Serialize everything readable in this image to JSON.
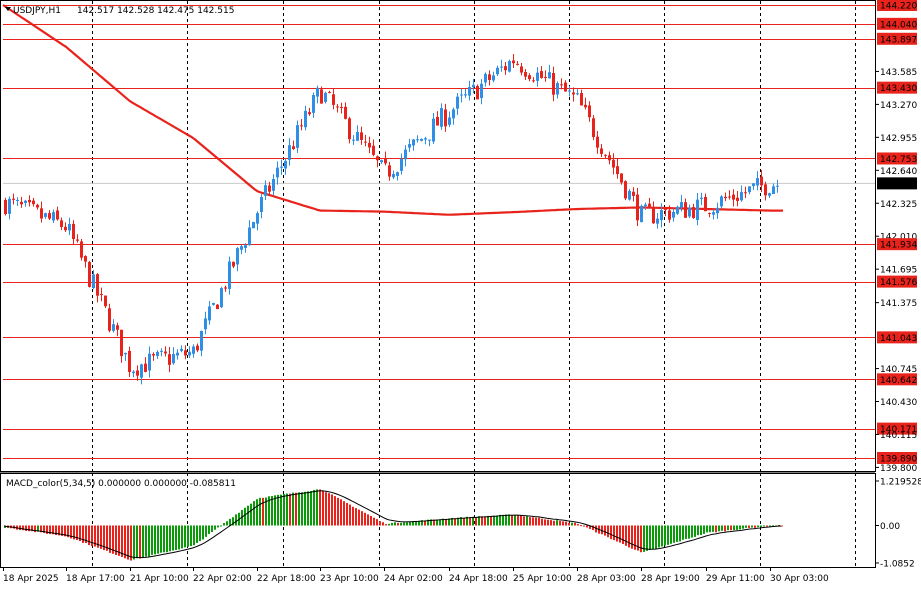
{
  "header": {
    "symbol": "USDJPY,H1",
    "ohlc": "142.517 142.528 142.475 142.515"
  },
  "macd": {
    "label": "MACD_color(5,34,5) 0.000000 0.000000 -0.085811",
    "scale": [
      "1.219528",
      "0.00",
      "-1.0852"
    ]
  },
  "price_scale": [
    "144.220",
    "144.040",
    "143.897",
    "143.585",
    "143.430",
    "143.270",
    "142.955",
    "142.753",
    "142.640",
    "142.515",
    "142.325",
    "142.010",
    "141.934",
    "141.695",
    "141.576",
    "141.375",
    "141.043",
    "140.745",
    "140.642",
    "140.430",
    "140.171",
    "140.115",
    "139.890",
    "139.800"
  ],
  "levels": [
    "144.220",
    "144.040",
    "143.897",
    "143.430",
    "142.753",
    "141.934",
    "141.576",
    "141.043",
    "140.642",
    "140.171",
    "139.890"
  ],
  "bid": "142.515",
  "time_axis": [
    "18 Apr 2025",
    "18 Apr 17:00",
    "21 Apr 10:00",
    "22 Apr 02:00",
    "22 Apr 18:00",
    "23 Apr 10:00",
    "24 Apr 02:00",
    "24 Apr 18:00",
    "25 Apr 10:00",
    "28 Apr 03:00",
    "28 Apr 19:00",
    "29 Apr 11:00",
    "30 Apr 03:00"
  ],
  "colors": {
    "bull": "#2f8fe6",
    "bear": "#e8231c",
    "level_line": "#e8231c",
    "level_tag": "#e8231c",
    "bid_tag": "#000000",
    "ma": "#e8231c",
    "hist_up": "#0a9a0a",
    "hist_down": "#e8231c",
    "signal": "#000000"
  },
  "chart_data": {
    "type": "candlestick",
    "interval": "H1",
    "series_anchor_points": [
      {
        "time": "18 Apr 2025",
        "price": 142.34
      },
      {
        "time": "18 Apr 17:00",
        "price": 142.1
      },
      {
        "time": "21 Apr 10:00",
        "price": 140.76
      },
      {
        "time": "22 Apr 02:00",
        "price": 140.9
      },
      {
        "time": "22 Apr 18:00",
        "price": 142.25
      },
      {
        "time": "23 Apr 10:00",
        "price": 143.4
      },
      {
        "time": "24 Apr 02:00",
        "price": 142.6
      },
      {
        "time": "24 Apr 18:00",
        "price": 143.2
      },
      {
        "time": "25 Apr 10:00",
        "price": 143.7
      },
      {
        "time": "28 Apr 03:00",
        "price": 143.3
      },
      {
        "time": "28 Apr 19:00",
        "price": 142.2
      },
      {
        "time": "29 Apr 11:00",
        "price": 142.3
      },
      {
        "time": "30 Apr 03:00",
        "price": 142.515
      }
    ],
    "moving_average_anchor_points": [
      {
        "time": "18 Apr 2025",
        "price": 144.22
      },
      {
        "time": "18 Apr 17:00",
        "price": 143.82
      },
      {
        "time": "21 Apr 10:00",
        "price": 143.3
      },
      {
        "time": "22 Apr 02:00",
        "price": 142.95
      },
      {
        "time": "22 Apr 18:00",
        "price": 142.44
      },
      {
        "time": "23 Apr 10:00",
        "price": 142.255
      },
      {
        "time": "24 Apr 02:00",
        "price": 142.245
      },
      {
        "time": "24 Apr 18:00",
        "price": 142.215
      },
      {
        "time": "25 Apr 10:00",
        "price": 142.24
      },
      {
        "time": "28 Apr 03:00",
        "price": 142.27
      },
      {
        "time": "28 Apr 19:00",
        "price": 142.285
      },
      {
        "time": "29 Apr 11:00",
        "price": 142.27
      },
      {
        "time": "30 Apr 03:00",
        "price": 142.255
      }
    ],
    "macd_anchor_points": [
      {
        "time": "18 Apr 2025",
        "value": -0.05
      },
      {
        "time": "18 Apr 17:00",
        "value": -0.3
      },
      {
        "time": "21 Apr 10:00",
        "value": -0.95
      },
      {
        "time": "22 Apr 02:00",
        "value": -0.55
      },
      {
        "time": "22 Apr 18:00",
        "value": 0.75
      },
      {
        "time": "23 Apr 10:00",
        "value": 1.0
      },
      {
        "time": "24 Apr 02:00",
        "value": 0.05
      },
      {
        "time": "24 Apr 18:00",
        "value": 0.2
      },
      {
        "time": "25 Apr 10:00",
        "value": 0.3
      },
      {
        "time": "28 Apr 03:00",
        "value": 0.05
      },
      {
        "time": "28 Apr 19:00",
        "value": -0.75
      },
      {
        "time": "29 Apr 11:00",
        "value": -0.2
      },
      {
        "time": "30 Apr 03:00",
        "value": 0.0
      }
    ]
  }
}
